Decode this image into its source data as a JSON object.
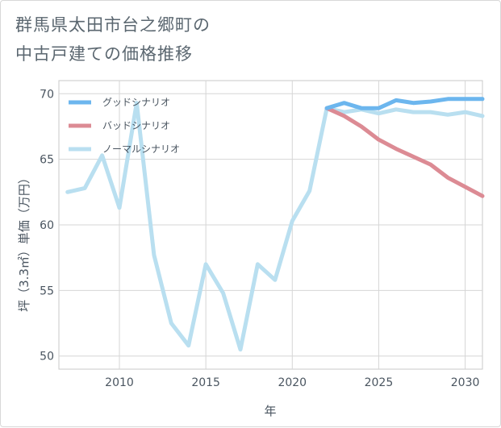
{
  "title_lines": [
    "群馬県太田市台之郷町の",
    "中古戸建ての価格推移"
  ],
  "chart_data": {
    "type": "line",
    "title": "群馬県太田市台之郷町の中古戸建ての価格推移",
    "xlabel": "年",
    "ylabel": "坪（3.3㎡）単価（万円）",
    "xlim": [
      2006.5,
      2031
    ],
    "ylim": [
      49,
      71
    ],
    "xticks": [
      2010,
      2015,
      2020,
      2025,
      2030
    ],
    "yticks": [
      50,
      55,
      60,
      65,
      70
    ],
    "grid": true,
    "legend_position": "top-left",
    "series": [
      {
        "name": "グッドシナリオ",
        "color": "#6cb6ee",
        "points": [
          [
            2022,
            68.9
          ],
          [
            2023,
            69.3
          ],
          [
            2024,
            68.9
          ],
          [
            2025,
            68.9
          ],
          [
            2026,
            69.5
          ],
          [
            2027,
            69.3
          ],
          [
            2028,
            69.4
          ],
          [
            2029,
            69.6
          ],
          [
            2030,
            69.6
          ],
          [
            2031,
            69.6
          ]
        ]
      },
      {
        "name": "バッドシナリオ",
        "color": "#dc8b94",
        "points": [
          [
            2022,
            68.9
          ],
          [
            2023,
            68.3
          ],
          [
            2024,
            67.5
          ],
          [
            2025,
            66.5
          ],
          [
            2026,
            65.8
          ],
          [
            2027,
            65.2
          ],
          [
            2028,
            64.6
          ],
          [
            2029,
            63.6
          ],
          [
            2030,
            62.9
          ],
          [
            2031,
            62.2
          ]
        ]
      },
      {
        "name": "ノーマルシナリオ",
        "color": "#b9dff0",
        "points": [
          [
            2007,
            62.5
          ],
          [
            2008,
            62.8
          ],
          [
            2009,
            65.3
          ],
          [
            2010,
            61.3
          ],
          [
            2011,
            69.3
          ],
          [
            2012,
            57.7
          ],
          [
            2013,
            52.5
          ],
          [
            2014,
            50.8
          ],
          [
            2015,
            57.0
          ],
          [
            2016,
            54.8
          ],
          [
            2017,
            50.5
          ],
          [
            2018,
            57.0
          ],
          [
            2019,
            55.8
          ],
          [
            2020,
            60.3
          ],
          [
            2021,
            62.6
          ],
          [
            2022,
            68.9
          ],
          [
            2023,
            68.6
          ],
          [
            2024,
            68.8
          ],
          [
            2025,
            68.5
          ],
          [
            2026,
            68.8
          ],
          [
            2027,
            68.6
          ],
          [
            2028,
            68.6
          ],
          [
            2029,
            68.4
          ],
          [
            2030,
            68.6
          ],
          [
            2031,
            68.3
          ]
        ]
      }
    ]
  }
}
